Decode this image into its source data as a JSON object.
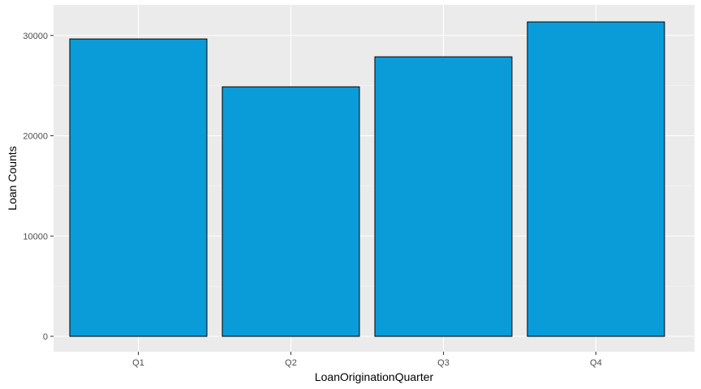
{
  "chart_data": {
    "type": "bar",
    "categories": [
      "Q1",
      "Q2",
      "Q3",
      "Q4"
    ],
    "values": [
      29650,
      24880,
      27870,
      31350
    ],
    "xlabel": "LoanOriginationQuarter",
    "ylabel": "Loan Counts",
    "ylim": [
      0,
      32900
    ],
    "yticks": [
      0,
      10000,
      20000,
      30000
    ],
    "ytick_labels": [
      "0",
      "10000",
      "20000",
      "30000"
    ],
    "grid": true,
    "colors": {
      "bar_fill": "#0a9cd9",
      "bar_stroke": "#000000",
      "panel_background": "#ebebeb",
      "grid_major": "#ffffff",
      "tick_text": "#4d4d4d"
    }
  }
}
